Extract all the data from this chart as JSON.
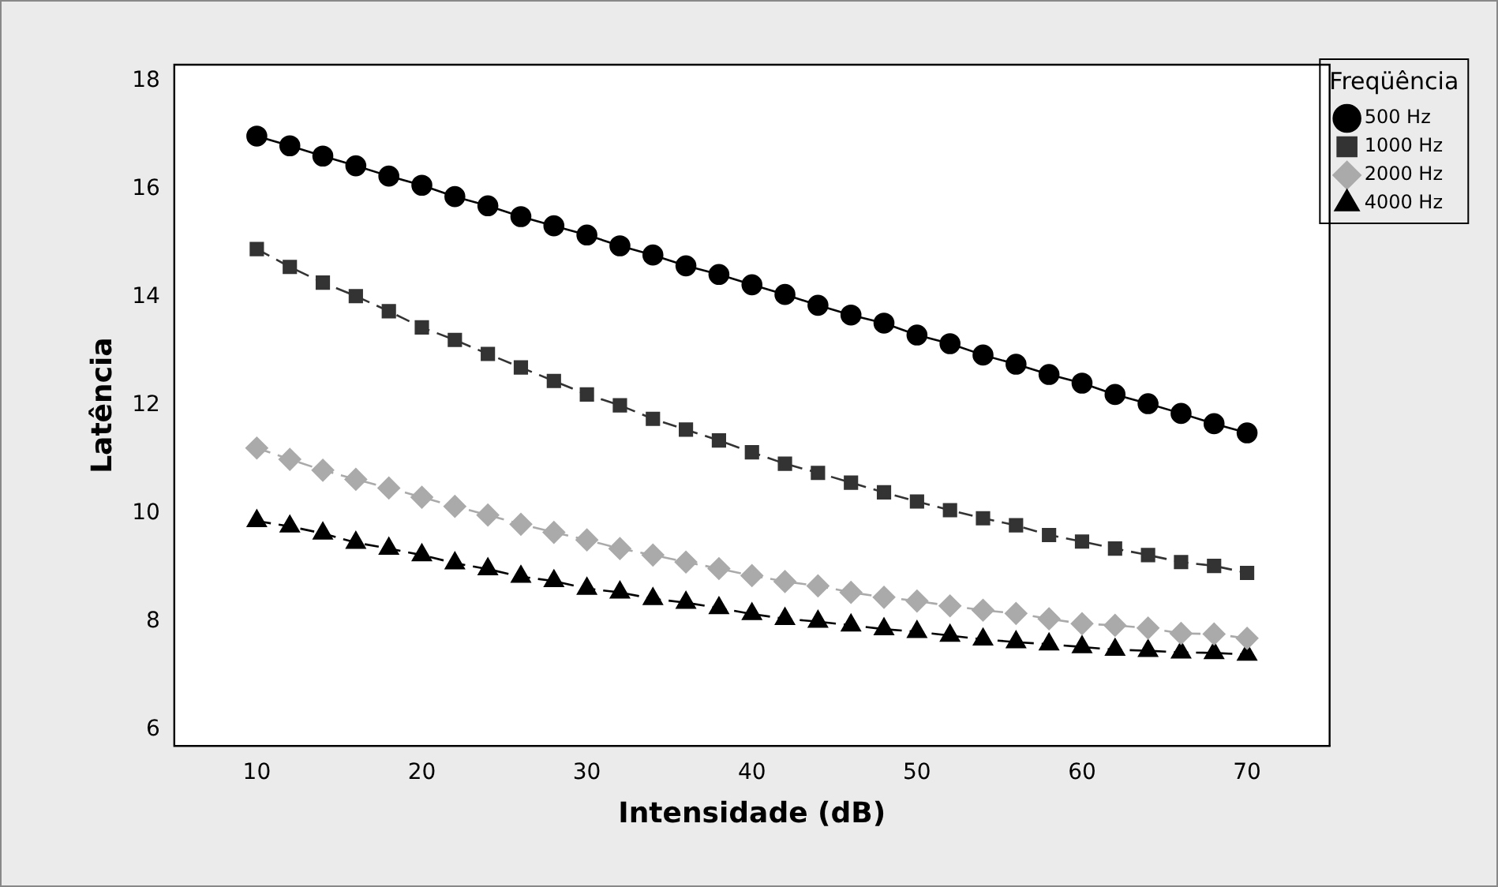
{
  "chart_data": {
    "type": "line",
    "xlabel": "Intensidade (dB)",
    "ylabel": "Latência",
    "legend_title": "Freqüência",
    "x": [
      10,
      12,
      14,
      16,
      18,
      20,
      22,
      24,
      26,
      28,
      30,
      32,
      34,
      36,
      38,
      40,
      42,
      44,
      46,
      48,
      50,
      52,
      54,
      56,
      58,
      60,
      62,
      64,
      66,
      68,
      70
    ],
    "series": [
      {
        "name": "500 Hz",
        "color": "#000000",
        "marker": "circle",
        "line_style": "solid",
        "values": [
          16.98,
          16.8,
          16.61,
          16.43,
          16.24,
          16.07,
          15.86,
          15.69,
          15.49,
          15.32,
          15.15,
          14.95,
          14.78,
          14.58,
          14.42,
          14.23,
          14.05,
          13.85,
          13.67,
          13.52,
          13.3,
          13.14,
          12.93,
          12.76,
          12.57,
          12.41,
          12.2,
          12.03,
          11.85,
          11.66,
          11.49
        ]
      },
      {
        "name": "1000 Hz",
        "color": "#333333",
        "marker": "square",
        "line_style": "dashed",
        "values": [
          14.89,
          14.56,
          14.27,
          14.02,
          13.74,
          13.44,
          13.21,
          12.95,
          12.7,
          12.45,
          12.2,
          12.0,
          11.75,
          11.55,
          11.35,
          11.13,
          10.92,
          10.75,
          10.57,
          10.39,
          10.22,
          10.06,
          9.91,
          9.78,
          9.6,
          9.48,
          9.35,
          9.23,
          9.1,
          9.03,
          8.9
        ]
      },
      {
        "name": "2000 Hz",
        "color": "#aaaaaa",
        "marker": "diamond",
        "line_style": "dashed",
        "values": [
          11.21,
          11.0,
          10.8,
          10.63,
          10.47,
          10.3,
          10.13,
          9.97,
          9.8,
          9.65,
          9.51,
          9.35,
          9.23,
          9.1,
          8.98,
          8.85,
          8.74,
          8.66,
          8.54,
          8.45,
          8.38,
          8.29,
          8.21,
          8.15,
          8.05,
          7.96,
          7.93,
          7.88,
          7.78,
          7.77,
          7.69
        ]
      },
      {
        "name": "4000 Hz",
        "color": "#000000",
        "marker": "triangle",
        "line_style": "dashed",
        "values": [
          9.86,
          9.76,
          9.63,
          9.46,
          9.35,
          9.23,
          9.08,
          8.97,
          8.83,
          8.75,
          8.61,
          8.54,
          8.42,
          8.35,
          8.25,
          8.14,
          8.05,
          8.0,
          7.93,
          7.86,
          7.81,
          7.74,
          7.67,
          7.62,
          7.58,
          7.53,
          7.48,
          7.46,
          7.43,
          7.42,
          7.39
        ]
      }
    ],
    "xlim": [
      5,
      75
    ],
    "xticks": [
      10,
      20,
      30,
      40,
      50,
      60,
      70
    ],
    "ylim": [
      5.7,
      18.3
    ],
    "yticks": [
      6,
      8,
      10,
      12,
      14,
      16,
      18
    ],
    "grid": false,
    "legend": "top right"
  }
}
